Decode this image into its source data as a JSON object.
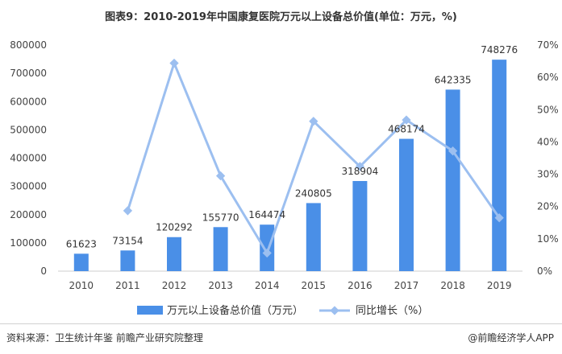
{
  "title": "图表9：2010-2019年中国康复医院万元以上设备总价值(单位：万元，%)",
  "chart_data": {
    "type": "bar",
    "categories": [
      "2010",
      "2011",
      "2012",
      "2013",
      "2014",
      "2015",
      "2016",
      "2017",
      "2018",
      "2019"
    ],
    "series": [
      {
        "name": "万元以上设备总价值（万元）",
        "type": "bar",
        "axis": "left",
        "values": [
          61623,
          73154,
          120292,
          155770,
          164474,
          240805,
          318904,
          468174,
          642335,
          748276
        ]
      },
      {
        "name": "同比增长（%）",
        "type": "line",
        "axis": "right",
        "values": [
          null,
          18.7,
          64.4,
          29.5,
          5.6,
          46.4,
          32.4,
          46.8,
          37.2,
          16.5
        ]
      }
    ],
    "y_left": {
      "ticks": [
        "0",
        "100000",
        "200000",
        "300000",
        "400000",
        "500000",
        "600000",
        "700000",
        "800000"
      ],
      "range": [
        0,
        800000
      ]
    },
    "y_right": {
      "ticks": [
        "0%",
        "10%",
        "20%",
        "30%",
        "40%",
        "50%",
        "60%",
        "70%"
      ],
      "range": [
        0,
        70
      ]
    },
    "legend_position": "bottom",
    "colors": {
      "bar": "#4a8fe7",
      "line": "#9cbff0",
      "tick": "#444444"
    }
  },
  "footer": {
    "source": "资料来源：卫生统计年鉴 前瞻产业研究院整理",
    "brand": "@前瞻经济学人APP"
  },
  "watermark": "前瞻产业研究院"
}
